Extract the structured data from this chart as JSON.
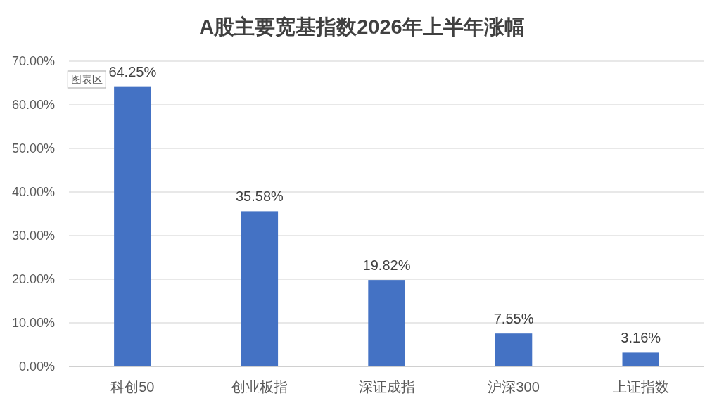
{
  "chart_data": {
    "type": "bar",
    "title": "A股主要宽基指数2026年上半年涨幅",
    "categories": [
      "科创50",
      "创业板指",
      "深证成指",
      "沪深300",
      "上证指数"
    ],
    "values": [
      64.25,
      35.58,
      19.82,
      7.55,
      3.16
    ],
    "color": "#4472c4",
    "value_labels": [
      "64.25%",
      "35.58%",
      "19.82%",
      "7.55%",
      "3.16%"
    ],
    "ylim": [
      0,
      70
    ],
    "yticks": [
      {
        "value": 0,
        "label": "0.00%"
      },
      {
        "value": 10,
        "label": "10.00%"
      },
      {
        "value": 20,
        "label": "20.00%"
      },
      {
        "value": 30,
        "label": "30.00%"
      },
      {
        "value": 40,
        "label": "40.00%"
      },
      {
        "value": 50,
        "label": "50.00%"
      },
      {
        "value": 60,
        "label": "60.00%"
      },
      {
        "value": 70,
        "label": "70.00%"
      }
    ],
    "grid": "y",
    "annotations": [
      "图表区"
    ]
  }
}
